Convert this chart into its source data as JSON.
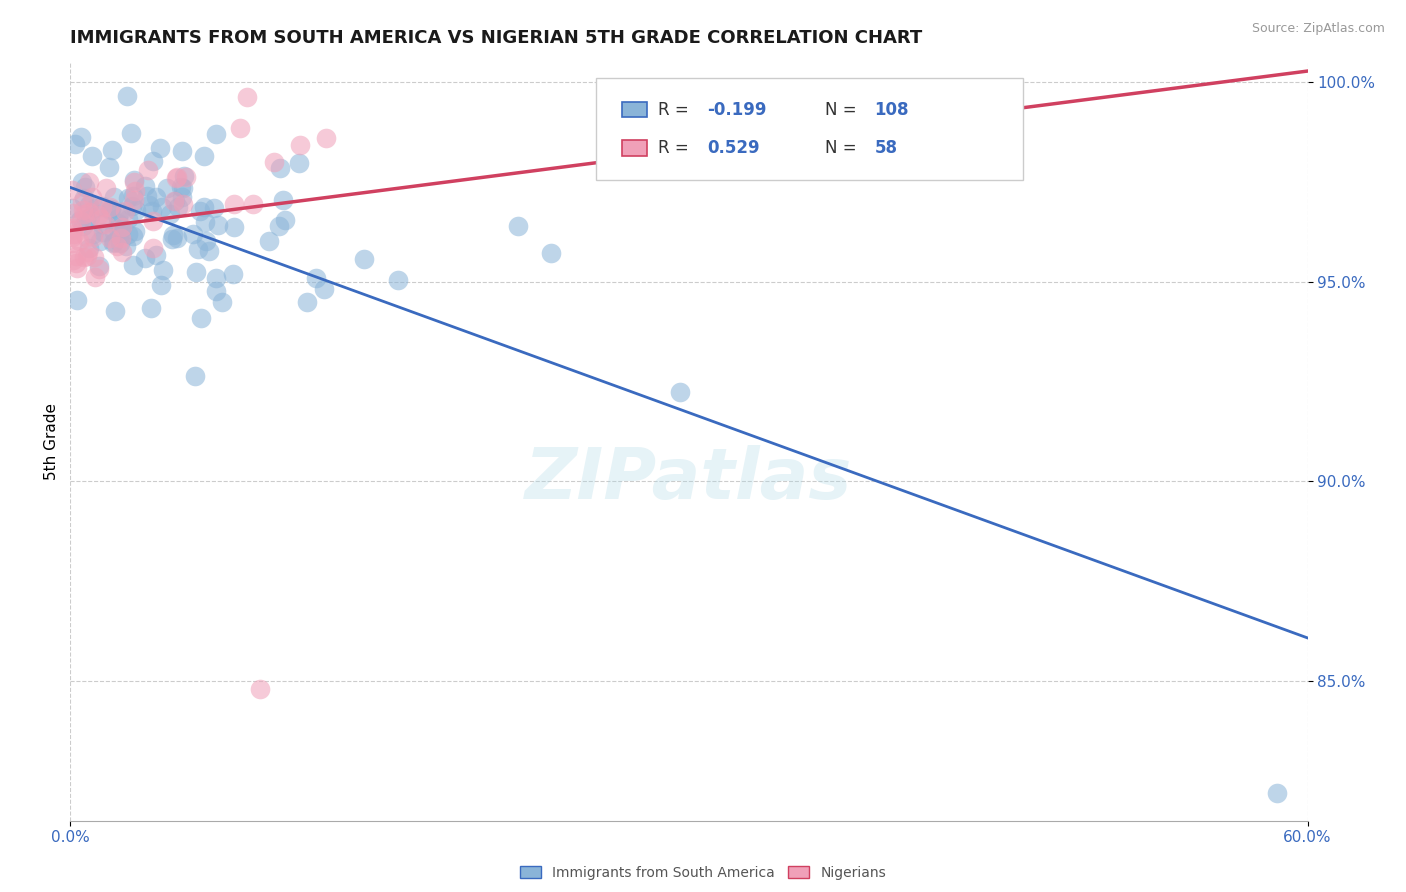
{
  "title": "IMMIGRANTS FROM SOUTH AMERICA VS NIGERIAN 5TH GRADE CORRELATION CHART",
  "source": "Source: ZipAtlas.com",
  "xtick_left": "0.0%",
  "xtick_right": "60.0%",
  "ylabel": "5th Grade",
  "xlim": [
    0.0,
    0.6
  ],
  "ylim": [
    0.815,
    1.005
  ],
  "yticks": [
    0.85,
    0.9,
    0.95,
    1.0
  ],
  "ytick_labels": [
    "85.0%",
    "90.0%",
    "95.0%",
    "100.0%"
  ],
  "blue_R": -0.199,
  "blue_N": 108,
  "pink_R": 0.529,
  "pink_N": 58,
  "blue_scatter_color": "#8ab4d8",
  "pink_scatter_color": "#f0a0b8",
  "blue_line_color": "#3a6abf",
  "pink_line_color": "#d04060",
  "legend_label_blue": "Immigrants from South America",
  "legend_label_pink": "Nigerians",
  "background_color": "#ffffff",
  "grid_color": "#cccccc",
  "watermark_text": "ZIPatlas",
  "scatter_size": 200,
  "scatter_alpha": 0.55,
  "title_fontsize": 13,
  "tick_fontsize": 11,
  "ylabel_fontsize": 11,
  "source_fontsize": 9
}
